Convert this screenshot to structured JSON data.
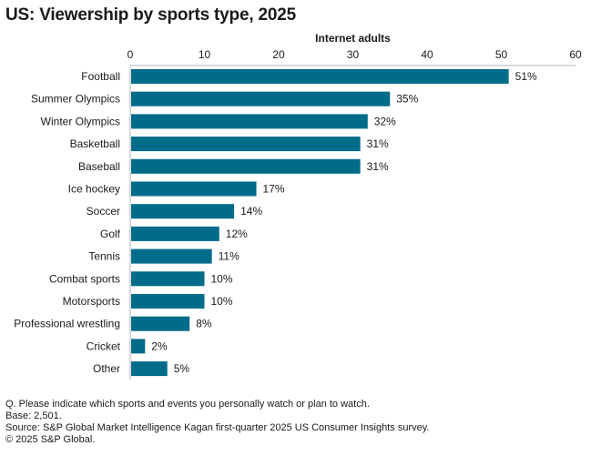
{
  "chart_data": {
    "type": "bar",
    "orientation": "horizontal",
    "title": "US: Viewership by sports type, 2025",
    "xlabel": "Internet adults",
    "ylabel": "",
    "xlim": [
      0,
      60
    ],
    "xticks": [
      0,
      10,
      20,
      30,
      40,
      50,
      60
    ],
    "grid": false,
    "axis_position": "top",
    "bar_color": "#006C89",
    "categories": [
      "Football",
      "Summer Olympics",
      "Winter Olympics",
      "Basketball",
      "Baseball",
      "Ice hockey",
      "Soccer",
      "Golf",
      "Tennis",
      "Combat sports",
      "Motorsports",
      "Professional wrestling",
      "Cricket",
      "Other"
    ],
    "values": [
      51,
      35,
      32,
      31,
      31,
      17,
      14,
      12,
      11,
      10,
      10,
      8,
      2,
      5
    ],
    "value_labels": [
      "51%",
      "35%",
      "32%",
      "31%",
      "31%",
      "17%",
      "14%",
      "12%",
      "11%",
      "10%",
      "10%",
      "8%",
      "2%",
      "5%"
    ]
  },
  "footnotes": [
    "Q. Please indicate which sports and events you personally watch or plan to watch.",
    "Base: 2,501.",
    "Source: S&P Global Market Intelligence Kagan first-quarter 2025 US Consumer Insights survey.",
    "© 2025 S&P Global."
  ]
}
